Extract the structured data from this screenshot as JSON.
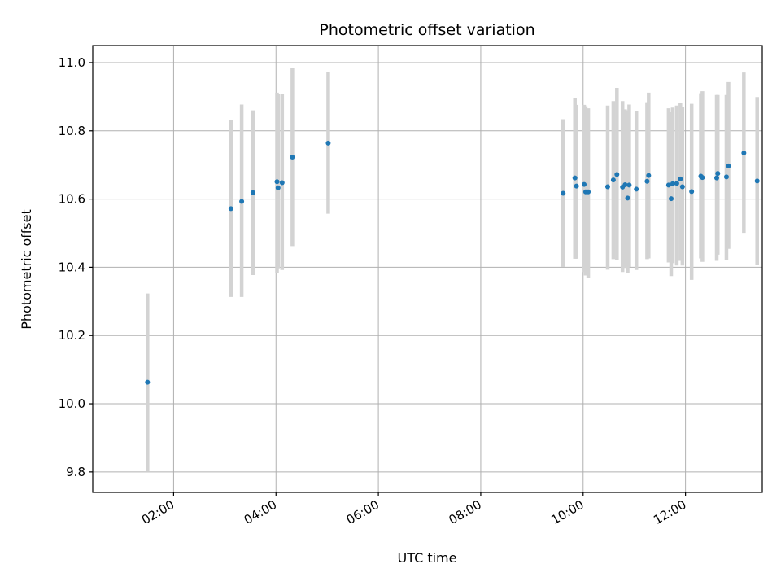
{
  "chart_data": {
    "type": "scatter",
    "title": "Photometric offset variation",
    "xlabel": "UTC time",
    "ylabel": "Photometric offset",
    "x_unit": "hours UTC",
    "xlim": [
      0.42,
      13.5
    ],
    "ylim": [
      9.74,
      11.05
    ],
    "x_ticks": [
      {
        "value": 2,
        "label": "02:00"
      },
      {
        "value": 4,
        "label": "04:00"
      },
      {
        "value": 6,
        "label": "06:00"
      },
      {
        "value": 8,
        "label": "08:00"
      },
      {
        "value": 10,
        "label": "10:00"
      },
      {
        "value": 12,
        "label": "12:00"
      }
    ],
    "y_ticks": [
      {
        "value": 9.8,
        "label": "9.8"
      },
      {
        "value": 10.0,
        "label": "10.0"
      },
      {
        "value": 10.2,
        "label": "10.2"
      },
      {
        "value": 10.4,
        "label": "10.4"
      },
      {
        "value": 10.6,
        "label": "10.6"
      },
      {
        "value": 10.8,
        "label": "10.8"
      },
      {
        "value": 11.0,
        "label": "11.0"
      }
    ],
    "grid": true,
    "colors": {
      "point": "#1f77b4",
      "errorbar": "#d3d3d3",
      "grid": "#b0b0b0"
    },
    "points": [
      {
        "x": 1.49,
        "y": 10.063,
        "ylo": 9.8,
        "yhi": 10.323
      },
      {
        "x": 3.12,
        "y": 10.572,
        "ylo": 10.313,
        "yhi": 10.832
      },
      {
        "x": 3.33,
        "y": 10.593,
        "ylo": 10.313,
        "yhi": 10.877
      },
      {
        "x": 3.55,
        "y": 10.619,
        "ylo": 10.377,
        "yhi": 10.86
      },
      {
        "x": 4.02,
        "y": 10.651,
        "ylo": 10.384,
        "yhi": 10.912
      },
      {
        "x": 4.04,
        "y": 10.633,
        "ylo": 10.397,
        "yhi": 10.909
      },
      {
        "x": 4.12,
        "y": 10.648,
        "ylo": 10.392,
        "yhi": 10.909
      },
      {
        "x": 4.32,
        "y": 10.723,
        "ylo": 10.462,
        "yhi": 10.985
      },
      {
        "x": 5.02,
        "y": 10.764,
        "ylo": 10.557,
        "yhi": 10.972
      },
      {
        "x": 9.61,
        "y": 10.617,
        "ylo": 10.401,
        "yhi": 10.834
      },
      {
        "x": 9.84,
        "y": 10.662,
        "ylo": 10.425,
        "yhi": 10.896
      },
      {
        "x": 9.87,
        "y": 10.638,
        "ylo": 10.425,
        "yhi": 10.876
      },
      {
        "x": 10.02,
        "y": 10.643,
        "ylo": 10.386,
        "yhi": 10.876
      },
      {
        "x": 10.05,
        "y": 10.621,
        "ylo": 10.376,
        "yhi": 10.872
      },
      {
        "x": 10.1,
        "y": 10.621,
        "ylo": 10.368,
        "yhi": 10.866
      },
      {
        "x": 10.48,
        "y": 10.636,
        "ylo": 10.393,
        "yhi": 10.874
      },
      {
        "x": 10.59,
        "y": 10.656,
        "ylo": 10.424,
        "yhi": 10.887
      },
      {
        "x": 10.66,
        "y": 10.672,
        "ylo": 10.422,
        "yhi": 10.926
      },
      {
        "x": 10.77,
        "y": 10.635,
        "ylo": 10.386,
        "yhi": 10.887
      },
      {
        "x": 10.82,
        "y": 10.642,
        "ylo": 10.398,
        "yhi": 10.863
      },
      {
        "x": 10.87,
        "y": 10.603,
        "ylo": 10.383,
        "yhi": 10.86
      },
      {
        "x": 10.9,
        "y": 10.641,
        "ylo": 10.401,
        "yhi": 10.877
      },
      {
        "x": 11.04,
        "y": 10.629,
        "ylo": 10.392,
        "yhi": 10.859
      },
      {
        "x": 11.25,
        "y": 10.652,
        "ylo": 10.424,
        "yhi": 10.884
      },
      {
        "x": 11.28,
        "y": 10.669,
        "ylo": 10.426,
        "yhi": 10.912
      },
      {
        "x": 11.67,
        "y": 10.641,
        "ylo": 10.414,
        "yhi": 10.866
      },
      {
        "x": 11.72,
        "y": 10.601,
        "ylo": 10.374,
        "yhi": 10.856
      },
      {
        "x": 11.75,
        "y": 10.645,
        "ylo": 10.412,
        "yhi": 10.868
      },
      {
        "x": 11.83,
        "y": 10.646,
        "ylo": 10.405,
        "yhi": 10.874
      },
      {
        "x": 11.9,
        "y": 10.659,
        "ylo": 10.419,
        "yhi": 10.881
      },
      {
        "x": 11.94,
        "y": 10.636,
        "ylo": 10.405,
        "yhi": 10.869
      },
      {
        "x": 12.12,
        "y": 10.622,
        "ylo": 10.363,
        "yhi": 10.879
      },
      {
        "x": 12.3,
        "y": 10.667,
        "ylo": 10.426,
        "yhi": 10.91
      },
      {
        "x": 12.33,
        "y": 10.663,
        "ylo": 10.416,
        "yhi": 10.916
      },
      {
        "x": 12.61,
        "y": 10.662,
        "ylo": 10.419,
        "yhi": 10.905
      },
      {
        "x": 12.63,
        "y": 10.675,
        "ylo": 10.437,
        "yhi": 10.905
      },
      {
        "x": 12.8,
        "y": 10.665,
        "ylo": 10.421,
        "yhi": 10.905
      },
      {
        "x": 12.84,
        "y": 10.697,
        "ylo": 10.454,
        "yhi": 10.943
      },
      {
        "x": 13.14,
        "y": 10.735,
        "ylo": 10.501,
        "yhi": 10.971
      },
      {
        "x": 13.4,
        "y": 10.653,
        "ylo": 10.406,
        "yhi": 10.899
      }
    ]
  }
}
